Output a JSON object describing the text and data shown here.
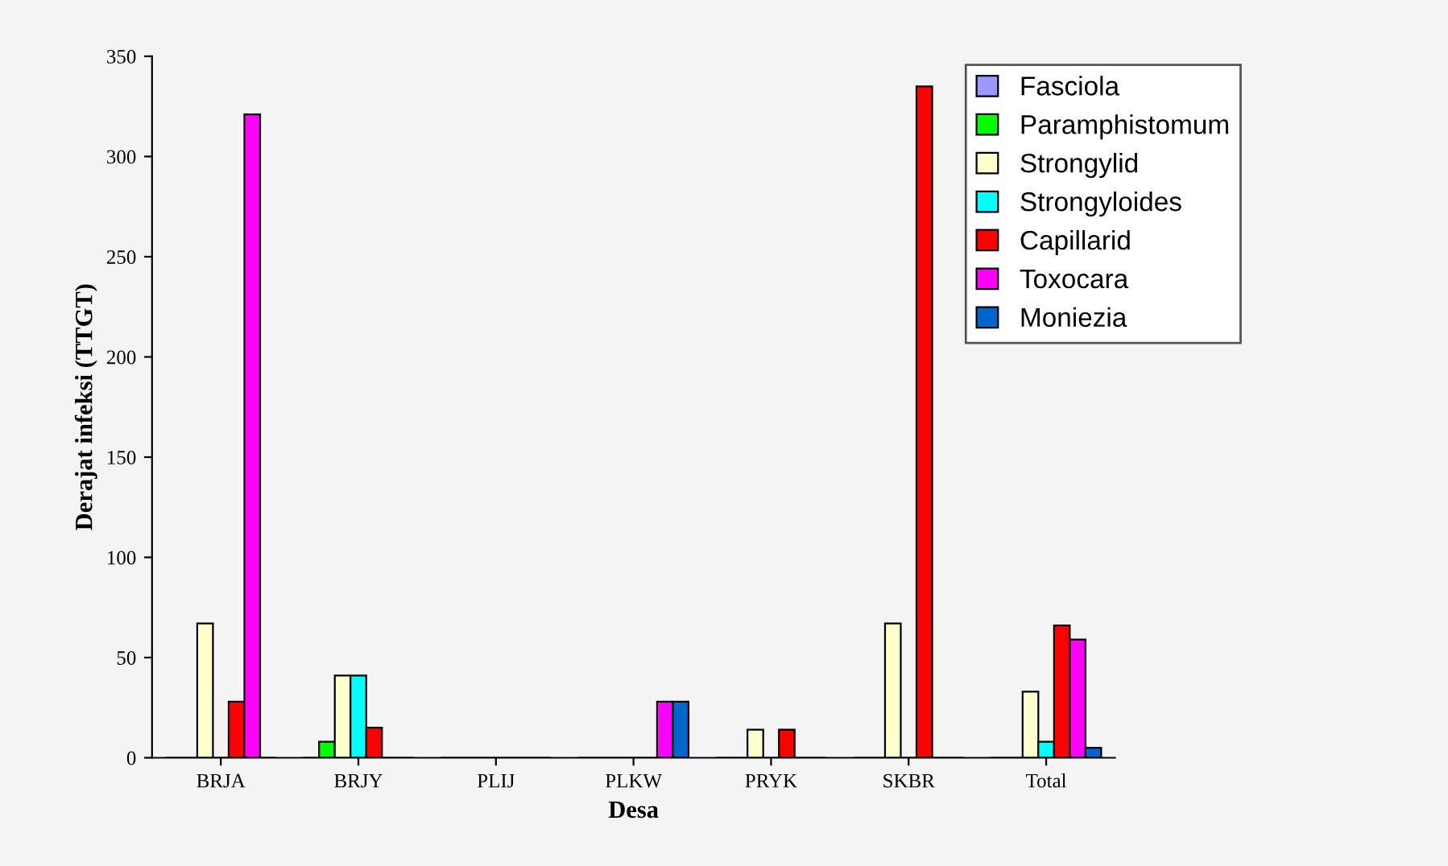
{
  "chart_data": {
    "type": "bar",
    "xlabel": "Desa",
    "ylabel": "Derajat infeksi (TTGT)",
    "categories": [
      "BRJA",
      "BRJY",
      "PLIJ",
      "PLKW",
      "PRYK",
      "SKBR",
      "Total"
    ],
    "series": [
      {
        "name": "Fasciola",
        "color": "#9999ff",
        "values": [
          0,
          0,
          0,
          0,
          0,
          0,
          0
        ]
      },
      {
        "name": "Paramphistomum",
        "color": "#00ff00",
        "values": [
          0,
          8,
          0,
          0,
          0,
          0,
          0
        ]
      },
      {
        "name": "Strongylid",
        "color": "#ffffcc",
        "values": [
          67,
          41,
          0,
          0,
          14,
          67,
          33
        ]
      },
      {
        "name": "Strongyloides",
        "color": "#00ffff",
        "values": [
          0,
          41,
          0,
          0,
          0,
          0,
          8
        ]
      },
      {
        "name": "Capillarid",
        "color": "#ff0000",
        "values": [
          28,
          15,
          0,
          0,
          14,
          335,
          66
        ]
      },
      {
        "name": "Toxocara",
        "color": "#ff00ff",
        "values": [
          321,
          0,
          0,
          28,
          0,
          0,
          59
        ]
      },
      {
        "name": "Moniezia",
        "color": "#0066cc",
        "values": [
          0,
          0,
          0,
          28,
          0,
          0,
          5
        ]
      }
    ],
    "ylim": [
      0,
      350
    ],
    "yticks": [
      0,
      50,
      100,
      150,
      200,
      250,
      300,
      350
    ],
    "grid": false,
    "legend": "top right"
  }
}
